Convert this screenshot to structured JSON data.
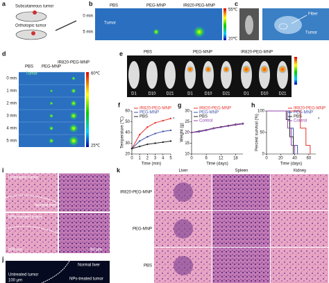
{
  "panel_labels": [
    "a",
    "b",
    "c",
    "d",
    "e",
    "f",
    "g",
    "h",
    "i",
    "j",
    "k"
  ],
  "a": {
    "subcutaneous": "Subcutaneous tumor",
    "orthotopic": "Orthotopic tumor"
  },
  "b": {
    "columns": [
      "PBS",
      "PEG-MNP",
      "IR820-PEG-MNP"
    ],
    "rows": [
      "0 min",
      "5 min"
    ],
    "scale": [
      "55℃",
      "20℃"
    ],
    "tumor": "Tumor"
  },
  "c": {
    "fiber": "Fiber",
    "tumor": "Tumor"
  },
  "d": {
    "columns": [
      "PBS",
      "PEG-MNP",
      "IR820-PEG-MNP"
    ],
    "rows": [
      "0 min",
      "1 min",
      "2 min",
      "3 min",
      "4 min",
      "5 min"
    ],
    "scale": [
      "60℃",
      "25℃"
    ],
    "tumor": "Tumor"
  },
  "e": {
    "columns": [
      "PBS",
      "PEG-MNP",
      "IR820-PEG-MNP"
    ],
    "days": [
      "D1",
      "D10",
      "D21",
      "D1",
      "D10",
      "D21",
      "D1",
      "D10",
      "D21"
    ]
  },
  "i": {
    "untreated": "Untreated tumor",
    "normal": "Normal liver",
    "treated": "NPs-treated tumor",
    "scale_large": "500 μm",
    "scale_small": "50 μm"
  },
  "j": {
    "untreated": "Untreated tumor",
    "normal": "Normal liver",
    "treated": "NPs-treated tumor",
    "scale": "100 μm"
  },
  "k": {
    "columns": [
      "Liver",
      "Spleen",
      "Kidney"
    ],
    "rows": [
      "IR820-PEG-MNP",
      "PEG-MNP",
      "PBS"
    ]
  },
  "chart_data": [
    {
      "type": "line",
      "xlabel": "Time (min)",
      "ylabel": "Temperature (℃)",
      "x": [
        0,
        1,
        2,
        3,
        4,
        5
      ],
      "xlim": [
        0,
        5
      ],
      "xticks": [
        0,
        1,
        2,
        3,
        4,
        5
      ],
      "ylim": [
        20,
        60
      ],
      "yticks": [
        20,
        30,
        40,
        50,
        60
      ],
      "legend": "upper left",
      "markers": true,
      "annotation": "*",
      "series": [
        {
          "name": "IR820-PEG-MNP",
          "color": "#e8312a",
          "values": [
            25,
            38,
            45,
            49,
            51,
            53
          ]
        },
        {
          "name": "PEG-MNP",
          "color": "#3a4fa8",
          "values": [
            25,
            32,
            36,
            39,
            41,
            42
          ]
        },
        {
          "name": "PBS",
          "color": "#222222",
          "values": [
            25,
            27,
            29,
            30,
            31,
            32
          ]
        }
      ]
    },
    {
      "type": "line",
      "xlabel": "Time (days)",
      "ylabel": "Weight (g)",
      "x": [
        0,
        3,
        6,
        9,
        12,
        15,
        18,
        21
      ],
      "xlim": [
        0,
        21
      ],
      "xticks": [
        0,
        6,
        12,
        18
      ],
      "ylim": [
        10,
        30
      ],
      "yticks": [
        10,
        15,
        20,
        25,
        30
      ],
      "legend": "upper left",
      "markers": true,
      "series": [
        {
          "name": "IR820-PEG-MNP",
          "color": "#e8312a",
          "values": [
            20,
            20.5,
            21,
            22,
            22.5,
            23,
            23.5,
            24
          ]
        },
        {
          "name": "PEG-MNP",
          "color": "#3a4fa8",
          "values": [
            20,
            20.3,
            21,
            21.8,
            22.5,
            23,
            23.6,
            24
          ]
        },
        {
          "name": "PBS",
          "color": "#222222",
          "values": [
            20,
            20.6,
            21.2,
            22,
            22.6,
            23.2,
            23.8,
            24.2
          ]
        },
        {
          "name": "Control",
          "color": "#8e44ad",
          "values": [
            20,
            20.4,
            21.1,
            21.9,
            22.4,
            23.1,
            23.7,
            24.1
          ]
        }
      ]
    },
    {
      "type": "step",
      "xlabel": "Time (days)",
      "ylabel": "Percent survival (%)",
      "xlim": [
        0,
        70
      ],
      "xticks": [
        0,
        20,
        40,
        60
      ],
      "ylim": [
        0,
        100
      ],
      "yticks": [
        0,
        50,
        100
      ],
      "legend": "upper right",
      "annotation": "*",
      "series": [
        {
          "name": "IR820-PEG-MNP",
          "color": "#e8312a",
          "x": [
            0,
            48,
            56,
            62
          ],
          "values": [
            100,
            60,
            20,
            0
          ]
        },
        {
          "name": "PEG-MNP",
          "color": "#3a4fa8",
          "x": [
            0,
            33,
            38,
            44
          ],
          "values": [
            100,
            60,
            20,
            0
          ]
        },
        {
          "name": "PBS",
          "color": "#222222",
          "x": [
            0,
            28,
            33,
            38
          ],
          "values": [
            100,
            80,
            40,
            0
          ]
        },
        {
          "name": "Control",
          "color": "#8e44ad",
          "x": [
            0,
            30,
            35,
            40
          ],
          "values": [
            100,
            60,
            20,
            0
          ]
        }
      ]
    }
  ]
}
